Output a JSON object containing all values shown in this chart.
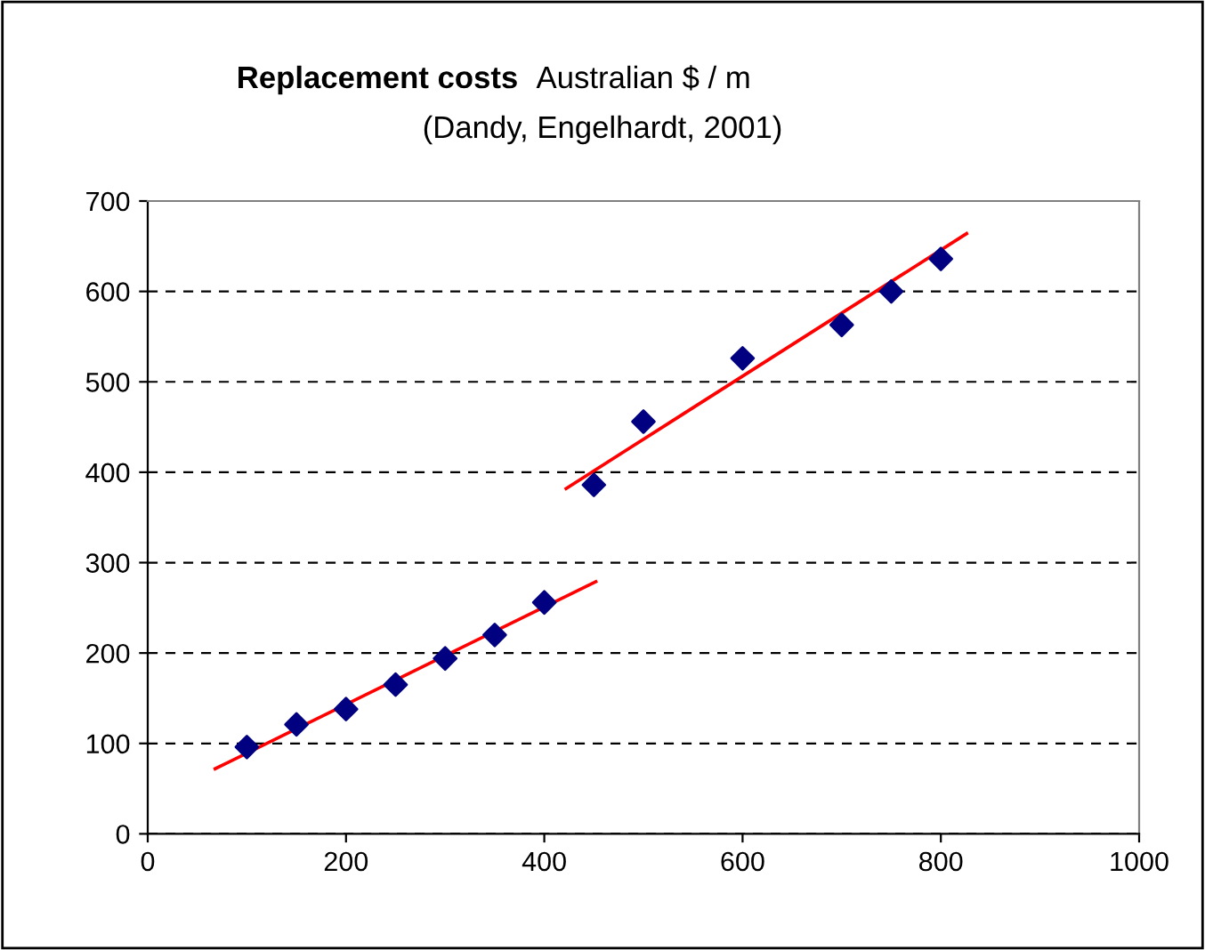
{
  "chart_data": {
    "type": "scatter",
    "title": "Replacement costs",
    "subtitle": "Australian $ / m",
    "annotations": [
      "(Dandy, Engelhardt, 2001)"
    ],
    "xlim": [
      0,
      1000
    ],
    "xticks": [
      0,
      200,
      400,
      600,
      800,
      1000
    ],
    "ylim": [
      0,
      700
    ],
    "yticks": [
      0,
      100,
      200,
      300,
      400,
      500,
      600,
      700
    ],
    "grid": "y",
    "legend": false,
    "series": [
      {
        "color": "#000080",
        "marker": "diamond",
        "x": [
          100,
          150,
          200,
          250,
          300,
          350,
          400,
          450,
          500,
          600,
          700,
          750,
          800
        ],
        "values": [
          96,
          121,
          138,
          165,
          194,
          220,
          256,
          386,
          456,
          526,
          563,
          600,
          636
        ]
      },
      {
        "type": "line",
        "color": "#ff0000",
        "marker": "none",
        "line_style": "solid",
        "x": [
          68,
          452
        ],
        "values": [
          72,
          279
        ]
      },
      {
        "type": "line",
        "color": "#ff0000",
        "marker": "none",
        "line_style": "solid",
        "x": [
          422,
          826
        ],
        "values": [
          382,
          664
        ]
      }
    ]
  }
}
